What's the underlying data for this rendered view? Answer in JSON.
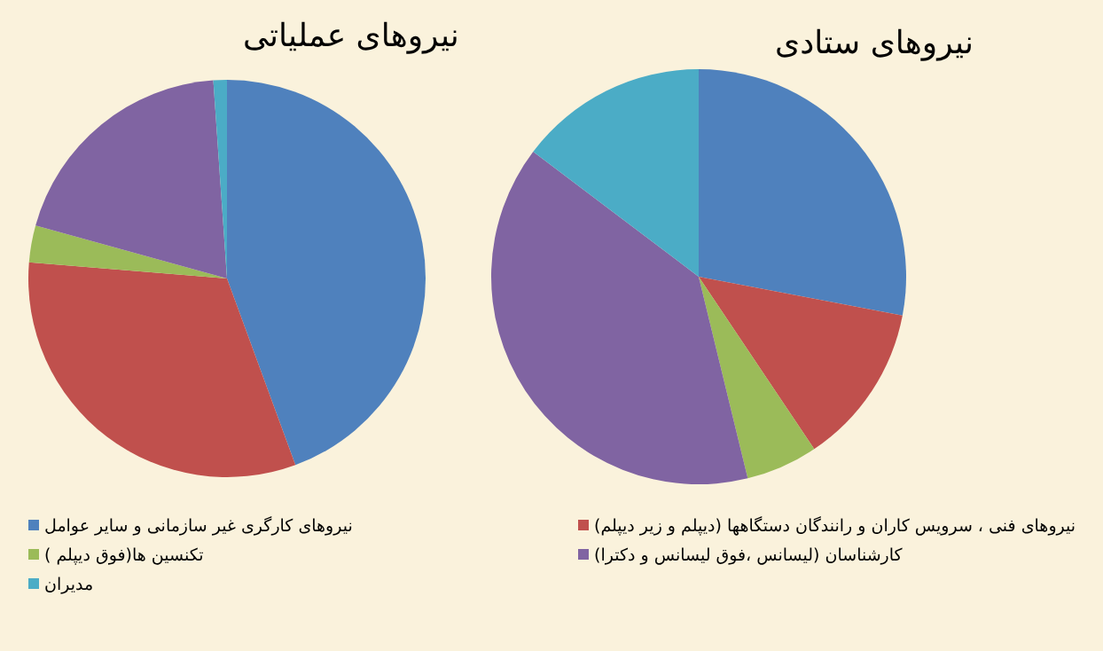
{
  "chart_data": [
    {
      "type": "pie",
      "title": "نیروهای عملیاتی",
      "legend": "bottom",
      "categories": [
        "نیروهای کارگری غیر سازمانی و سایر عوامل",
        "نیروهای فنی ، سرویس کاران و رانندگان دستگاهها (دیپلم و زیر دیپلم)",
        "تکنسین ها(فوق دیپلم )",
        "کارشناسان (لیسانس ،فوق لیسانس و دکترا)",
        "مدیران"
      ],
      "values": [
        44.4,
        31.9,
        3.0,
        19.6,
        1.1
      ],
      "colors": [
        "#4f81bd",
        "#c0504d",
        "#9bbb59",
        "#8064a2",
        "#4bacc6"
      ]
    },
    {
      "type": "pie",
      "title": "نیروهای ستادی",
      "categories": [
        null,
        null,
        null,
        null,
        null
      ],
      "values": [
        28.0,
        12.6,
        5.6,
        39.1,
        14.7
      ],
      "colors": [
        "#4f81bd",
        "#c0504d",
        "#9bbb59",
        "#8064a2",
        "#4bacc6"
      ]
    }
  ]
}
